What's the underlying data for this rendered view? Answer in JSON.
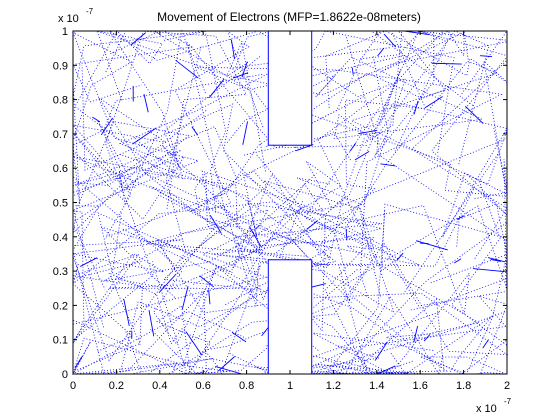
{
  "chart_data": {
    "type": "scatter",
    "title": "Movement of Electrons (MFP=1.8622e-08meters)",
    "x_multiplier": "x 10",
    "x_multiplier_exp": "-7",
    "y_multiplier": "x 10",
    "y_multiplier_exp": "-7",
    "xlim": [
      0,
      2
    ],
    "ylim": [
      0,
      1
    ],
    "xticks": [
      "0",
      "0.2",
      "0.4",
      "0.6",
      "0.8",
      "1",
      "1.2",
      "1.4",
      "1.6",
      "1.8",
      "2"
    ],
    "yticks": [
      "0",
      "0.1",
      "0.2",
      "0.3",
      "0.4",
      "0.5",
      "0.6",
      "0.7",
      "0.8",
      "0.9",
      "1"
    ],
    "boxes": [
      {
        "name": "top-barrier",
        "x": [
          0.9,
          1.1
        ],
        "y": [
          0.667,
          1.0
        ]
      },
      {
        "name": "bottom-barrier",
        "x": [
          0.9,
          1.1
        ],
        "y": [
          0.0,
          0.333
        ]
      }
    ],
    "series_color": "#0000ff",
    "series_style": "dotted trajectories"
  }
}
